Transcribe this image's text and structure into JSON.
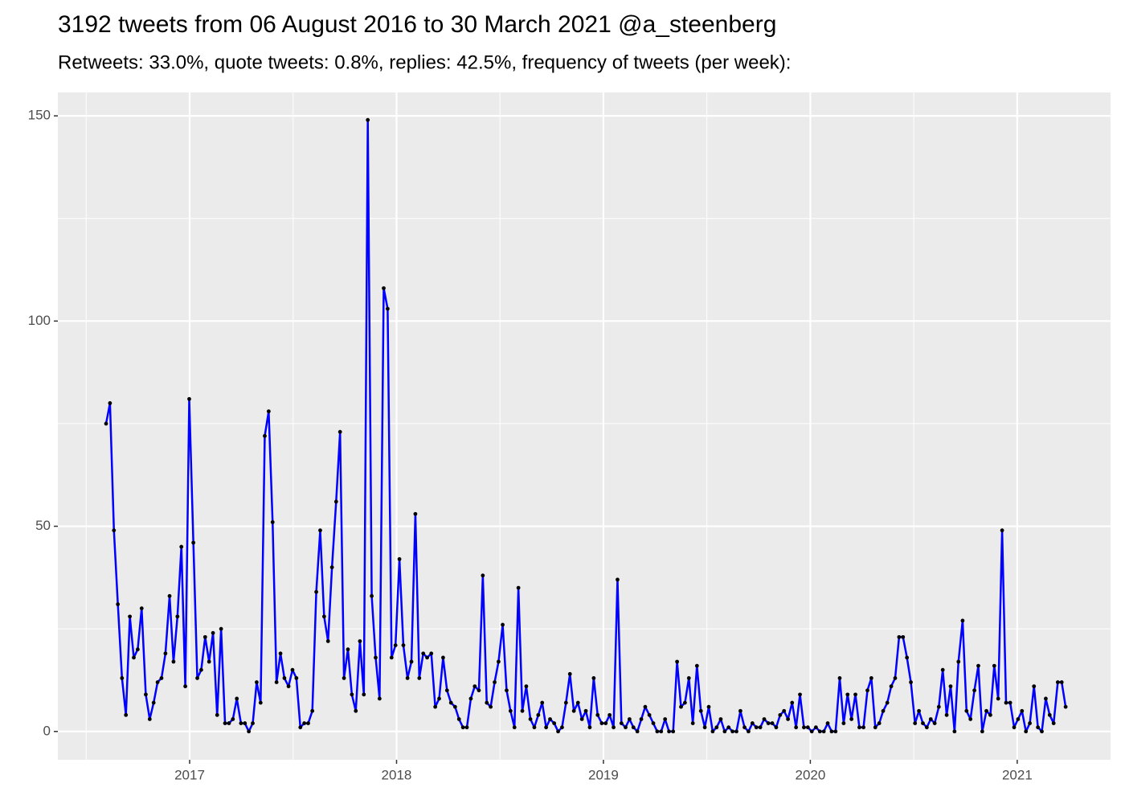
{
  "chart_data": {
    "type": "line",
    "title": "3192 tweets from 06 August 2016 to 30 March 2021 @a_steenberg",
    "subtitle": "Retweets: 33.0%, quote tweets: 0.8%, replies: 42.5%, frequency of tweets (per week):",
    "color": "#0000ff",
    "point_color": "#000000",
    "grid": true,
    "xlim": [
      2016.363,
      2021.451
    ],
    "xticks": [
      2017,
      2018,
      2019,
      2020,
      2021
    ],
    "ylim": [
      -6.9,
      155.7
    ],
    "yticks": [
      0,
      50,
      100,
      150
    ],
    "x": [
      2016.596,
      2016.615,
      2016.634,
      2016.653,
      2016.673,
      2016.692,
      2016.711,
      2016.73,
      2016.749,
      2016.768,
      2016.788,
      2016.807,
      2016.826,
      2016.845,
      2016.864,
      2016.883,
      2016.903,
      2016.922,
      2016.941,
      2016.96,
      2016.979,
      2016.998,
      2017.018,
      2017.037,
      2017.056,
      2017.075,
      2017.094,
      2017.113,
      2017.133,
      2017.152,
      2017.171,
      2017.19,
      2017.209,
      2017.228,
      2017.248,
      2017.267,
      2017.286,
      2017.305,
      2017.324,
      2017.343,
      2017.363,
      2017.382,
      2017.401,
      2017.42,
      2017.439,
      2017.458,
      2017.478,
      2017.497,
      2017.516,
      2017.535,
      2017.554,
      2017.573,
      2017.593,
      2017.612,
      2017.631,
      2017.65,
      2017.669,
      2017.688,
      2017.708,
      2017.727,
      2017.746,
      2017.765,
      2017.784,
      2017.803,
      2017.823,
      2017.842,
      2017.861,
      2017.88,
      2017.899,
      2017.918,
      2017.938,
      2017.957,
      2017.976,
      2017.995,
      2018.014,
      2018.033,
      2018.053,
      2018.072,
      2018.091,
      2018.11,
      2018.129,
      2018.148,
      2018.168,
      2018.187,
      2018.206,
      2018.225,
      2018.244,
      2018.263,
      2018.283,
      2018.302,
      2018.321,
      2018.34,
      2018.359,
      2018.378,
      2018.398,
      2018.417,
      2018.436,
      2018.455,
      2018.474,
      2018.493,
      2018.513,
      2018.532,
      2018.551,
      2018.57,
      2018.589,
      2018.608,
      2018.627,
      2018.647,
      2018.666,
      2018.685,
      2018.704,
      2018.723,
      2018.742,
      2018.762,
      2018.781,
      2018.8,
      2018.819,
      2018.838,
      2018.857,
      2018.877,
      2018.896,
      2018.915,
      2018.934,
      2018.953,
      2018.972,
      2018.992,
      2019.011,
      2019.03,
      2019.049,
      2019.068,
      2019.087,
      2019.107,
      2019.126,
      2019.145,
      2019.164,
      2019.183,
      2019.202,
      2019.222,
      2019.241,
      2019.26,
      2019.279,
      2019.298,
      2019.317,
      2019.337,
      2019.356,
      2019.375,
      2019.394,
      2019.413,
      2019.432,
      2019.452,
      2019.471,
      2019.49,
      2019.509,
      2019.528,
      2019.547,
      2019.567,
      2019.586,
      2019.605,
      2019.624,
      2019.643,
      2019.662,
      2019.682,
      2019.701,
      2019.72,
      2019.739,
      2019.758,
      2019.777,
      2019.797,
      2019.816,
      2019.835,
      2019.854,
      2019.873,
      2019.892,
      2019.912,
      2019.931,
      2019.95,
      2019.969,
      2019.988,
      2020.007,
      2020.027,
      2020.046,
      2020.065,
      2020.084,
      2020.103,
      2020.122,
      2020.142,
      2020.161,
      2020.18,
      2020.199,
      2020.218,
      2020.237,
      2020.257,
      2020.276,
      2020.295,
      2020.314,
      2020.333,
      2020.352,
      2020.372,
      2020.391,
      2020.41,
      2020.429,
      2020.448,
      2020.467,
      2020.486,
      2020.506,
      2020.525,
      2020.544,
      2020.563,
      2020.582,
      2020.601,
      2020.621,
      2020.64,
      2020.659,
      2020.678,
      2020.697,
      2020.716,
      2020.736,
      2020.755,
      2020.774,
      2020.793,
      2020.812,
      2020.831,
      2020.851,
      2020.87,
      2020.889,
      2020.908,
      2020.927,
      2020.946,
      2020.966,
      2020.985,
      2021.004,
      2021.023,
      2021.042,
      2021.061,
      2021.081,
      2021.1,
      2021.119,
      2021.138,
      2021.157,
      2021.176,
      2021.196,
      2021.215,
      2021.234
    ],
    "values": [
      75,
      80,
      49,
      31,
      13,
      4,
      28,
      18,
      20,
      30,
      9,
      3,
      7,
      12,
      13,
      19,
      33,
      17,
      28,
      45,
      11,
      81,
      46,
      13,
      15,
      23,
      17,
      24,
      4,
      25,
      2,
      2,
      3,
      8,
      2,
      2,
      0,
      2,
      12,
      7,
      72,
      78,
      51,
      12,
      19,
      13,
      11,
      15,
      13,
      1,
      2,
      2,
      5,
      34,
      49,
      28,
      22,
      40,
      56,
      73,
      13,
      20,
      9,
      5,
      22,
      9,
      149,
      33,
      18,
      8,
      108,
      103,
      18,
      21,
      42,
      21,
      13,
      17,
      53,
      13,
      19,
      18,
      19,
      6,
      8,
      18,
      10,
      7,
      6,
      3,
      1,
      1,
      8,
      11,
      10,
      38,
      7,
      6,
      12,
      17,
      26,
      10,
      5,
      1,
      35,
      5,
      11,
      3,
      1,
      4,
      7,
      1,
      3,
      2,
      0,
      1,
      7,
      14,
      5,
      7,
      3,
      5,
      1,
      13,
      4,
      2,
      2,
      4,
      1,
      37,
      2,
      1,
      3,
      1,
      0,
      3,
      6,
      4,
      2,
      0,
      0,
      3,
      0,
      0,
      17,
      6,
      7,
      13,
      2,
      16,
      5,
      1,
      6,
      0,
      1,
      3,
      0,
      1,
      0,
      0,
      5,
      1,
      0,
      2,
      1,
      1,
      3,
      2,
      2,
      1,
      4,
      5,
      3,
      7,
      1,
      9,
      1,
      1,
      0,
      1,
      0,
      0,
      2,
      0,
      0,
      13,
      2,
      9,
      3,
      9,
      1,
      1,
      10,
      13,
      1,
      2,
      5,
      7,
      11,
      13,
      23,
      23,
      18,
      12,
      2,
      5,
      2,
      1,
      3,
      2,
      6,
      15,
      4,
      11,
      0,
      17,
      27,
      5,
      3,
      10,
      16,
      0,
      5,
      4,
      16,
      8,
      49,
      7,
      7,
      1,
      3,
      5,
      0,
      2,
      11,
      1,
      0,
      8,
      4,
      2,
      12,
      12,
      6
    ]
  }
}
